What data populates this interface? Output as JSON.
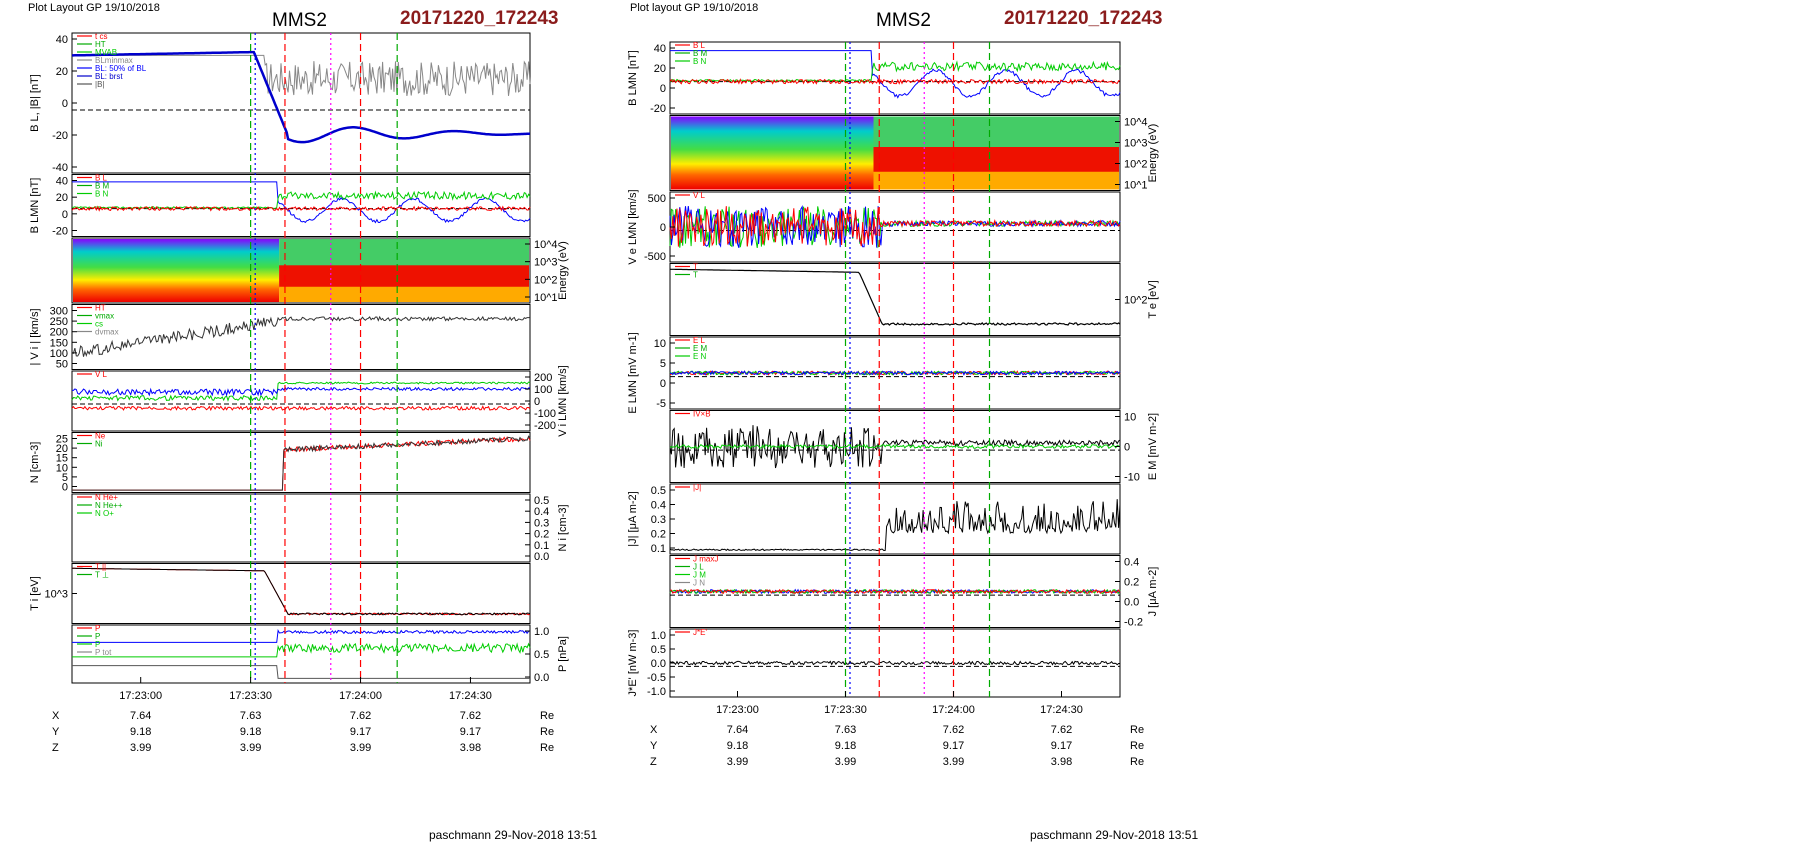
{
  "sheets": [
    {
      "layout_label": "Plot Layout GP 19/10/2018",
      "spacecraft": "MMS2",
      "event_id": "20171220_172243",
      "footer": "paschmann 29-Nov-2018 13:51",
      "time_ticks": [
        "17:23:00",
        "17:23:30",
        "17:24:00",
        "17:24:30"
      ],
      "orbit": {
        "rows": [
          {
            "label": "X",
            "values": [
              "7.64",
              "7.63",
              "7.62",
              "7.62"
            ],
            "unit": "Re"
          },
          {
            "label": "Y",
            "values": [
              "9.18",
              "9.18",
              "9.17",
              "9.17"
            ],
            "unit": "Re"
          },
          {
            "label": "Z",
            "values": [
              "3.99",
              "3.99",
              "3.99",
              "3.98"
            ],
            "unit": "Re"
          }
        ]
      },
      "markers": [
        {
          "t": 0.39,
          "color": "#00aa00",
          "dash": "7,4"
        },
        {
          "t": 0.4,
          "color": "#0000ff",
          "dash": "2,3"
        },
        {
          "t": 0.465,
          "color": "#ff0000",
          "dash": "7,4"
        },
        {
          "t": 0.565,
          "color": "#ff00ff",
          "dash": "2,3"
        },
        {
          "t": 0.63,
          "color": "#ff0000",
          "dash": "7,4"
        },
        {
          "t": 0.71,
          "color": "#00aa00",
          "dash": "7,4"
        }
      ],
      "panels": [
        {
          "id": "bl-absb",
          "ylabel": "B_L, |B| [nT]",
          "yticks": [
            "40",
            "20",
            "0",
            "-20",
            "-40"
          ],
          "legend": [
            "t_cs",
            "HT",
            "MVAB",
            "BLminmax",
            "BL: 50% of BL",
            "BL: brst",
            "|B|"
          ],
          "zero_line": true
        },
        {
          "id": "b-lmn",
          "ylabel": "B_LMN [nT]",
          "yticks": [
            "40",
            "20",
            "0",
            "-20"
          ],
          "legend": [
            "B_L",
            "B_M",
            "B_N"
          ],
          "zero_line": true
        },
        {
          "id": "ion-spec",
          "type": "spectrogram",
          "ylabel": "Energy (eV)",
          "yticks": [
            "10^4",
            "10^3",
            "10^2",
            "10^1"
          ],
          "side": "right"
        },
        {
          "id": "vi-mag",
          "ylabel": "| V_i | [km/s]",
          "yticks": [
            "300",
            "250",
            "200",
            "150",
            "100",
            "50"
          ],
          "legend": [
            "HT",
            "vmax",
            "cs",
            "dvmax"
          ]
        },
        {
          "id": "vi-lmn",
          "ylabel": "V_i LMN [km/s]",
          "yticks": [
            "200",
            "100",
            "0",
            "-100",
            "-200"
          ],
          "legend": [
            "V_L"
          ],
          "side": "right",
          "zero_line": true
        },
        {
          "id": "density",
          "ylabel": "N [cm^-3]",
          "yticks": [
            "25",
            "20",
            "15",
            "10",
            "5",
            "0"
          ],
          "legend": [
            "Ne",
            "Ni"
          ]
        },
        {
          "id": "heavy-ions",
          "ylabel": "N_i [cm^-3]",
          "yticks": [
            "0.5",
            "0.4",
            "0.3",
            "0.2",
            "0.1",
            "0.0"
          ],
          "legend": [
            "N He+",
            "N He++",
            "N O+"
          ],
          "side": "right"
        },
        {
          "id": "ti",
          "ylabel": "T_i [eV]",
          "yticks": [
            "10^3"
          ],
          "legend": [
            "T_||",
            "T_⊥"
          ]
        },
        {
          "id": "pressure",
          "ylabel": "P [nPa]",
          "yticks": [
            "1.0",
            "0.5",
            "0.0"
          ],
          "legend": [
            "P",
            "P",
            "P",
            "P_tot"
          ],
          "side": "right"
        }
      ]
    },
    {
      "layout_label": "Plot layout GP 19/10/2018",
      "spacecraft": "MMS2",
      "event_id": "20171220_172243",
      "footer": "paschmann 29-Nov-2018 13:51",
      "time_ticks": [
        "17:23:00",
        "17:23:30",
        "17:24:00",
        "17:24:30"
      ],
      "orbit": {
        "rows": [
          {
            "label": "X",
            "values": [
              "7.64",
              "7.63",
              "7.62",
              "7.62"
            ],
            "unit": "Re"
          },
          {
            "label": "Y",
            "values": [
              "9.18",
              "9.18",
              "9.17",
              "9.17"
            ],
            "unit": "Re"
          },
          {
            "label": "Z",
            "values": [
              "3.99",
              "3.99",
              "3.99",
              "3.98"
            ],
            "unit": "Re"
          }
        ]
      },
      "markers": [
        {
          "t": 0.39,
          "color": "#00aa00",
          "dash": "7,4"
        },
        {
          "t": 0.4,
          "color": "#0000ff",
          "dash": "2,3"
        },
        {
          "t": 0.465,
          "color": "#ff0000",
          "dash": "7,4"
        },
        {
          "t": 0.565,
          "color": "#ff00ff",
          "dash": "2,3"
        },
        {
          "t": 0.63,
          "color": "#ff0000",
          "dash": "7,4"
        },
        {
          "t": 0.71,
          "color": "#00aa00",
          "dash": "7,4"
        }
      ],
      "panels": [
        {
          "id": "b-lmn",
          "ylabel": "B_LMN [nT]",
          "yticks": [
            "40",
            "20",
            "0",
            "-20"
          ],
          "legend": [
            "B_L",
            "B_M",
            "B_N"
          ],
          "zero_line": true
        },
        {
          "id": "e-spec",
          "type": "spectrogram",
          "ylabel": "Energy (eV)",
          "yticks": [
            "10^4",
            "10^3",
            "10^2",
            "10^1"
          ],
          "side": "right"
        },
        {
          "id": "ve-lmn",
          "ylabel": "V_e LMN [km/s]",
          "yticks": [
            "500",
            "0",
            "-500"
          ],
          "legend": [
            "V_L"
          ],
          "zero_line": true
        },
        {
          "id": "te",
          "ylabel": "T_e [eV]",
          "yticks": [
            "10^2"
          ],
          "legend": [
            "T",
            "T"
          ],
          "side": "right"
        },
        {
          "id": "e-lmn",
          "ylabel": "E_LMN [mV m^-1]",
          "yticks": [
            "10",
            "5",
            "0",
            "-5"
          ],
          "legend": [
            "E_L",
            "E_M",
            "E_N"
          ],
          "zero_line": true
        },
        {
          "id": "em",
          "ylabel": "E_M [mV m^-2]",
          "yticks": [
            "10",
            "0",
            "-10"
          ],
          "legend": [
            "IV×B"
          ],
          "side": "right",
          "zero_line": true
        },
        {
          "id": "jmag",
          "ylabel": "|J| [μA m^-2]",
          "yticks": [
            "0.5",
            "0.4",
            "0.3",
            "0.2",
            "0.1"
          ],
          "legend": [
            "|J|"
          ]
        },
        {
          "id": "j-lmn",
          "ylabel": "J [μA m^-2]",
          "yticks": [
            "0.4",
            "0.2",
            "0.0",
            "-0.2"
          ],
          "legend": [
            "J_maxJ",
            "J_L",
            "J_M",
            "J_N"
          ],
          "side": "right",
          "zero_line": true
        },
        {
          "id": "jdote",
          "ylabel": "J*E' [nW m^-3]",
          "yticks": [
            "1.0",
            "0.5",
            "0.0",
            "-0.5",
            "-1.0"
          ],
          "legend": [
            "J*E'"
          ],
          "zero_line": true
        }
      ]
    }
  ],
  "colors": {
    "event_id": "#8b1c1c",
    "l_component": "#0000ff",
    "m_component": "#00cc00",
    "n_component": "#ff0000",
    "total": "#000000",
    "gray": "#888888",
    "magenta": "#ff00ff"
  }
}
